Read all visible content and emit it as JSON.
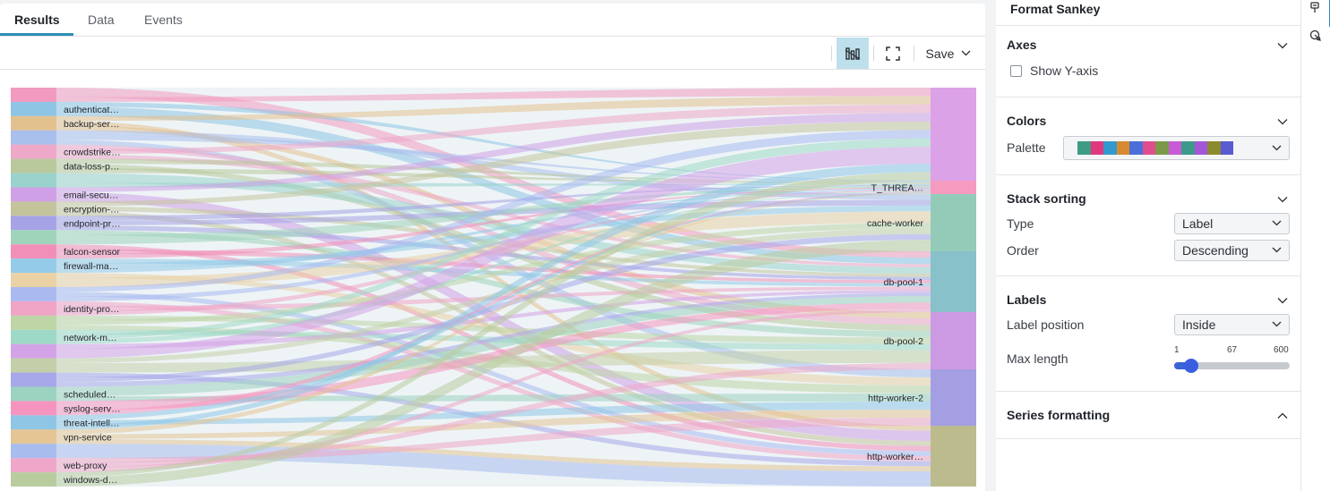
{
  "tabs": [
    {
      "label": "Results",
      "active": true
    },
    {
      "label": "Data",
      "active": false
    },
    {
      "label": "Events",
      "active": false
    }
  ],
  "toolbar": {
    "viz_icon": "chart-type-icon",
    "fullscreen_icon": "fullscreen-icon",
    "save_label": "Save"
  },
  "chart_data": {
    "type": "sankey",
    "sources": [
      {
        "label": "",
        "color": "#f29ac0"
      },
      {
        "label": "authenticat…",
        "color": "#8ec5e4"
      },
      {
        "label": "backup-ser…",
        "color": "#e3c18f"
      },
      {
        "label": "",
        "color": "#a9bfec"
      },
      {
        "label": "crowdstrike…",
        "color": "#eea8c8"
      },
      {
        "label": "data-loss-p…",
        "color": "#b9c99b"
      },
      {
        "label": "",
        "color": "#9ad3cc"
      },
      {
        "label": "email-secu…",
        "color": "#cfa0e6"
      },
      {
        "label": "encryption-…",
        "color": "#c4c49c"
      },
      {
        "label": "endpoint-pr…",
        "color": "#a6a3e6"
      },
      {
        "label": "",
        "color": "#9fd4bb"
      },
      {
        "label": "falcon-sensor",
        "color": "#f28fb8"
      },
      {
        "label": "firewall-ma…",
        "color": "#93cbe8"
      },
      {
        "label": "",
        "color": "#ead2a6"
      },
      {
        "label": "",
        "color": "#aab9f0"
      },
      {
        "label": "identity-pro…",
        "color": "#f0a4c6"
      },
      {
        "label": "",
        "color": "#bed6a6"
      },
      {
        "label": "network-m…",
        "color": "#9ed8c6"
      },
      {
        "label": "",
        "color": "#d3a3e8"
      },
      {
        "label": "",
        "color": "#c2cfa8"
      },
      {
        "label": "",
        "color": "#a7a8ea"
      },
      {
        "label": "scheduled…",
        "color": "#9cd2c0"
      },
      {
        "label": "syslog-serv…",
        "color": "#f595bf"
      },
      {
        "label": "threat-intell…",
        "color": "#8fc6e5"
      },
      {
        "label": "vpn-service",
        "color": "#e4c593"
      },
      {
        "label": "",
        "color": "#a8bcee"
      },
      {
        "label": "web-proxy",
        "color": "#efa7c9"
      },
      {
        "label": "windows-d…",
        "color": "#b9cca0"
      }
    ],
    "targets": [
      {
        "label": "",
        "color": "#dba2e8"
      },
      {
        "label": "T_THREA…",
        "color": "#f59bc0"
      },
      {
        "label": "cache-worker",
        "color": "#94cbb8"
      },
      {
        "label": "db-pool-1",
        "color": "#88c1c9"
      },
      {
        "label": "db-pool-2",
        "color": "#cc99e3"
      },
      {
        "label": "http-worker-2",
        "color": "#a49ee2"
      },
      {
        "label": "http-worker…",
        "color": "#bcbb8e"
      }
    ]
  },
  "format_panel": {
    "title": "Format Sankey",
    "axes": {
      "heading": "Axes",
      "show_y_axis_label": "Show Y-axis",
      "show_y_axis": false
    },
    "colors": {
      "heading": "Colors",
      "palette_label": "Palette",
      "swatches": [
        "#3f9b86",
        "#e0377e",
        "#3399cc",
        "#d88a30",
        "#4a6fd8",
        "#e04d8e",
        "#7a9a4a",
        "#c85ad6",
        "#3b9a8a",
        "#a456d8",
        "#8a8a2e",
        "#5a5ad2"
      ]
    },
    "stack_sorting": {
      "heading": "Stack sorting",
      "type_label": "Type",
      "type_value": "Label",
      "order_label": "Order",
      "order_value": "Descending"
    },
    "labels": {
      "heading": "Labels",
      "position_label": "Label position",
      "position_value": "Inside",
      "max_length_label": "Max length",
      "min": "1",
      "mid": "67",
      "max": "600",
      "value": 67
    },
    "series_formatting": {
      "heading": "Series formatting"
    }
  },
  "side_strip": {
    "icons": [
      "format-brush-icon",
      "cursor-settings-icon"
    ]
  }
}
